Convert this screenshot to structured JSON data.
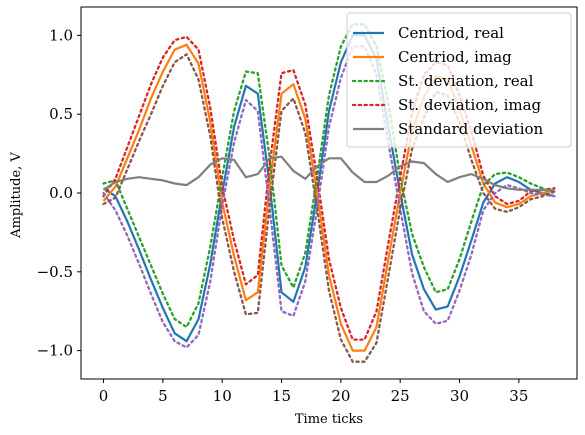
{
  "chart_data": {
    "type": "line",
    "title": "",
    "xlabel": "Time ticks",
    "ylabel": "Amplitude, V",
    "xlim": [
      -1.9,
      39.9
    ],
    "ylim": [
      -1.18,
      1.18
    ],
    "xticks": [
      0,
      5,
      10,
      15,
      20,
      25,
      30,
      35
    ],
    "yticks": [
      -1.0,
      -0.5,
      0.0,
      0.5,
      1.0
    ],
    "xtick_labels": [
      "0",
      "5",
      "10",
      "15",
      "20",
      "25",
      "30",
      "35"
    ],
    "ytick_labels": [
      "−1.0",
      "−0.5",
      "0.0",
      "0.5",
      "1.0"
    ],
    "grid": false,
    "legend_position": "top-right",
    "x": [
      0,
      1,
      2,
      3,
      4,
      5,
      6,
      7,
      8,
      9,
      10,
      11,
      12,
      13,
      14,
      15,
      16,
      17,
      18,
      19,
      20,
      21,
      22,
      23,
      24,
      25,
      26,
      27,
      28,
      29,
      30,
      31,
      32,
      33,
      34,
      35,
      36,
      37,
      38
    ],
    "series": [
      {
        "name": "Centriod, real",
        "color": "#1f77b4",
        "style": "solid",
        "values": [
          0.03,
          -0.02,
          -0.18,
          -0.36,
          -0.55,
          -0.73,
          -0.89,
          -0.94,
          -0.8,
          -0.45,
          0.0,
          0.42,
          0.68,
          0.63,
          0.05,
          -0.63,
          -0.69,
          -0.47,
          0.0,
          0.52,
          0.83,
          1.0,
          1.0,
          0.85,
          0.42,
          0.0,
          -0.39,
          -0.61,
          -0.74,
          -0.72,
          -0.53,
          -0.3,
          -0.06,
          0.06,
          0.1,
          0.07,
          0.02,
          0.0,
          -0.02
        ]
      },
      {
        "name": "Centriod, imag",
        "color": "#ff7f0e",
        "style": "solid",
        "values": [
          -0.05,
          0.04,
          0.22,
          0.4,
          0.6,
          0.77,
          0.91,
          0.94,
          0.82,
          0.45,
          -0.06,
          -0.4,
          -0.68,
          -0.63,
          0.05,
          0.63,
          0.69,
          0.47,
          0.0,
          -0.52,
          -0.83,
          -1.0,
          -1.0,
          -0.85,
          -0.42,
          0.0,
          0.39,
          0.61,
          0.74,
          0.72,
          0.53,
          0.3,
          0.06,
          -0.06,
          -0.09,
          -0.07,
          -0.02,
          0.0,
          0.02
        ]
      },
      {
        "name": "St. deviation, real",
        "color": "#2ca02c",
        "style": "dotted",
        "values": [
          0.06,
          0.08,
          -0.1,
          -0.28,
          -0.46,
          -0.64,
          -0.8,
          -0.85,
          -0.7,
          -0.34,
          0.1,
          0.52,
          0.77,
          0.76,
          0.22,
          -0.46,
          -0.6,
          -0.38,
          0.1,
          0.62,
          0.93,
          1.07,
          1.07,
          0.93,
          0.57,
          0.1,
          -0.26,
          -0.47,
          -0.63,
          -0.61,
          -0.42,
          -0.18,
          0.05,
          0.12,
          0.13,
          0.1,
          0.06,
          0.03,
          0.0
        ]
      },
      {
        "name": "St. deviation, imag",
        "color": "#d62728",
        "style": "dotted",
        "values": [
          -0.02,
          0.09,
          0.29,
          0.49,
          0.69,
          0.86,
          0.97,
          0.99,
          0.91,
          0.54,
          0.04,
          -0.3,
          -0.58,
          -0.52,
          0.18,
          0.76,
          0.78,
          0.56,
          0.1,
          -0.42,
          -0.73,
          -0.93,
          -0.93,
          -0.75,
          -0.32,
          0.1,
          0.51,
          0.75,
          0.83,
          0.81,
          0.62,
          0.39,
          0.11,
          -0.02,
          -0.07,
          -0.05,
          0.01,
          0.02,
          0.03
        ]
      },
      {
        "name": "",
        "color": "#9467bd",
        "style": "dotted",
        "values": [
          0.0,
          -0.11,
          -0.27,
          -0.45,
          -0.64,
          -0.82,
          -0.94,
          -0.98,
          -0.9,
          -0.56,
          -0.08,
          0.32,
          0.59,
          0.52,
          -0.1,
          -0.75,
          -0.78,
          -0.56,
          -0.1,
          0.42,
          0.73,
          0.93,
          0.93,
          0.75,
          0.32,
          -0.1,
          -0.51,
          -0.75,
          -0.83,
          -0.81,
          -0.62,
          -0.39,
          -0.11,
          0.0,
          0.05,
          0.03,
          0.0,
          -0.01,
          -0.02
        ]
      },
      {
        "name": "",
        "color": "#8c564b",
        "style": "dotted",
        "values": [
          -0.07,
          -0.03,
          0.15,
          0.33,
          0.5,
          0.68,
          0.83,
          0.88,
          0.72,
          0.36,
          -0.16,
          -0.5,
          -0.77,
          -0.76,
          -0.08,
          0.52,
          0.6,
          0.38,
          -0.1,
          -0.62,
          -0.93,
          -1.07,
          -1.07,
          -0.95,
          -0.53,
          -0.1,
          0.28,
          0.48,
          0.64,
          0.62,
          0.45,
          0.21,
          0.0,
          -0.1,
          -0.12,
          -0.09,
          -0.04,
          -0.02,
          0.01
        ]
      },
      {
        "name": "Standard deviation",
        "color": "#7f7f7f",
        "style": "solid",
        "values": [
          0.02,
          0.07,
          0.09,
          0.1,
          0.09,
          0.08,
          0.06,
          0.05,
          0.1,
          0.18,
          0.22,
          0.21,
          0.1,
          0.12,
          0.22,
          0.23,
          0.14,
          0.09,
          0.17,
          0.22,
          0.22,
          0.13,
          0.07,
          0.07,
          0.11,
          0.17,
          0.2,
          0.19,
          0.12,
          0.07,
          0.1,
          0.12,
          0.09,
          0.05,
          0.03,
          0.02,
          0.02,
          0.02,
          0.02
        ]
      }
    ],
    "legend": [
      "Centriod, real",
      "Centriod, imag",
      "St. deviation, real",
      "St. deviation, imag",
      "Standard deviation"
    ]
  }
}
